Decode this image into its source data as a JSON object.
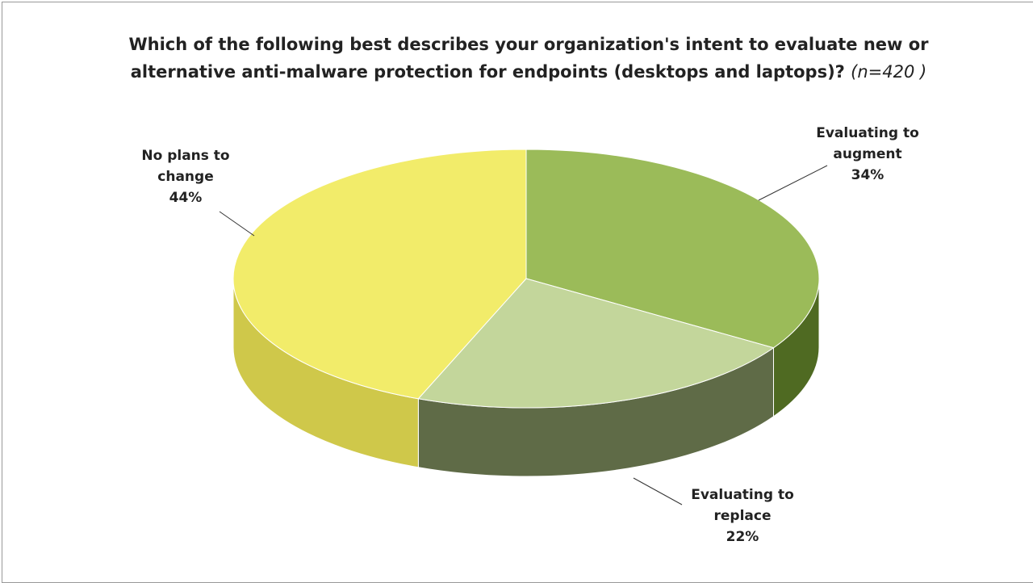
{
  "chart_data": {
    "type": "pie3d",
    "title": "Which of the following best describes your organization's intent to evaluate new or alternative anti-malware protection for endpoints (desktops and laptops)?",
    "subtitle": "(n=420 )",
    "categories": [
      "Evaluating to augment",
      "Evaluating to replace",
      "No plans to change"
    ],
    "values": [
      34,
      22,
      44
    ],
    "value_labels": [
      "34%",
      "22%",
      "44%"
    ],
    "colors": [
      "#9bbb59",
      "#c3d69b",
      "#f2ec6a"
    ],
    "side_colors": [
      "#4f6a22",
      "#5f6b47",
      "#cfc84a"
    ]
  }
}
